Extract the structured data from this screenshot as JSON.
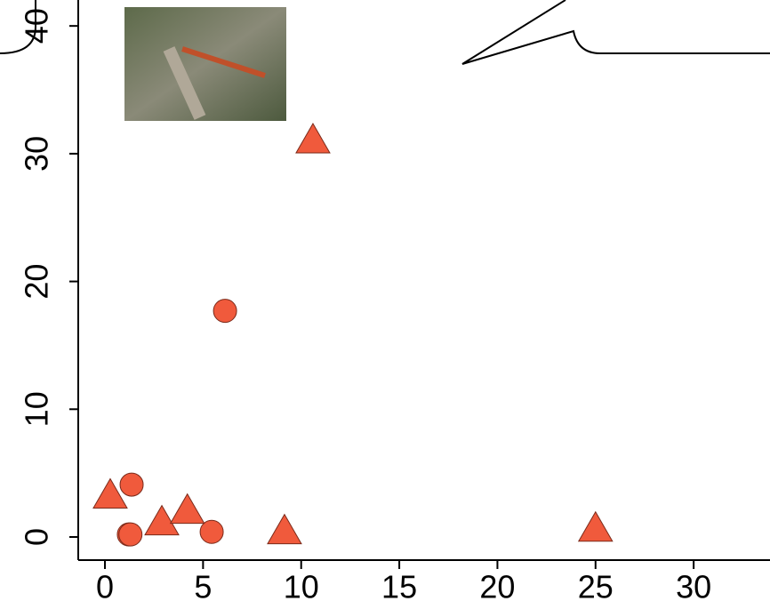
{
  "chart_data": {
    "type": "scatter",
    "xlim": [
      -1.36,
      33.89
    ],
    "ylim": [
      -1.81,
      42.03
    ],
    "xticks": [
      0,
      5,
      10,
      15,
      20,
      25,
      30
    ],
    "yticks": [
      0,
      10,
      20,
      30,
      40
    ],
    "series": [
      {
        "marker": "circle",
        "color": "#f05a3c",
        "x": [
          1.36,
          6.12,
          1.22,
          1.3,
          5.44
        ],
        "values": [
          4.1,
          17.7,
          0.2,
          0.2,
          0.4
        ]
      },
      {
        "marker": "triangle",
        "color": "#f05a3c",
        "x": [
          10.6,
          0.27,
          2.9,
          4.2,
          9.15,
          25.0
        ],
        "values": [
          30.9,
          3.1,
          1.0,
          1.9,
          0.3,
          0.5
        ]
      }
    ]
  }
}
